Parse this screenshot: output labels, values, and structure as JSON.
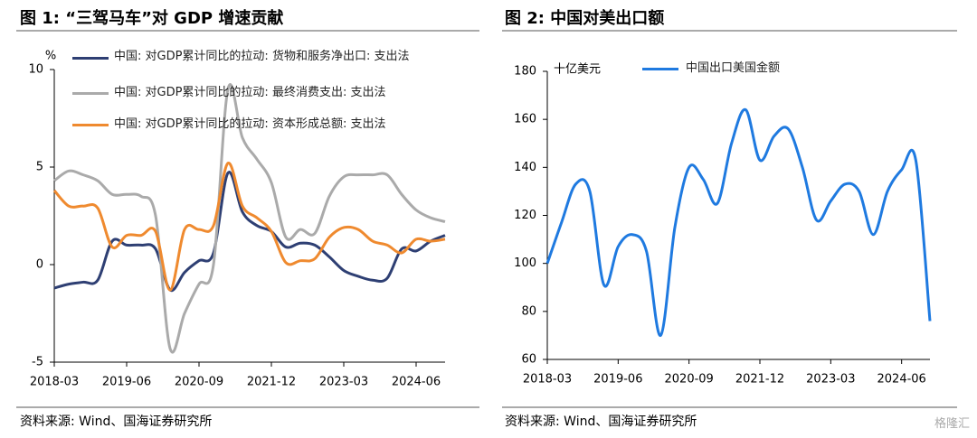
{
  "chart_data": [
    {
      "type": "line",
      "title": "图 1: “三驾马车”对 GDP 增速贡献",
      "ylabel": "%",
      "note": "资料来源: Wind、国海证券研究所",
      "x": [
        "2018-03",
        "2018-06",
        "2018-09",
        "2018-12",
        "2019-03",
        "2019-06",
        "2019-09",
        "2019-12",
        "2020-03",
        "2020-06",
        "2020-09",
        "2020-12",
        "2021-03",
        "2021-06",
        "2021-09",
        "2021-12",
        "2022-03",
        "2022-06",
        "2022-09",
        "2022-12",
        "2023-03",
        "2023-06",
        "2023-09",
        "2023-12",
        "2024-03",
        "2024-06",
        "2024-09",
        "2024-12"
      ],
      "xlim": [
        "2018-03",
        "2024-12"
      ],
      "xticks": [
        "2018-03",
        "2019-06",
        "2020-09",
        "2021-12",
        "2023-03",
        "2024-06"
      ],
      "ylim": [
        -5,
        10
      ],
      "yticks": [
        -5,
        0,
        5,
        10
      ],
      "series": [
        {
          "name": "中国: 对GDP累计同比的拉动: 货物和服务净出口: 支出法",
          "color": "#2e3f73",
          "values": [
            -1.2,
            -1.0,
            -0.9,
            -0.8,
            1.2,
            1.0,
            1.0,
            0.8,
            -1.3,
            -0.4,
            0.2,
            0.6,
            4.7,
            2.7,
            2.0,
            1.7,
            0.9,
            1.1,
            1.0,
            0.4,
            -0.3,
            -0.6,
            -0.8,
            -0.7,
            0.8,
            0.7,
            1.2,
            1.5
          ]
        },
        {
          "name": "中国: 对GDP累计同比的拉动: 最终消费支出: 支出法",
          "color": "#aaaaaa",
          "values": [
            4.3,
            4.8,
            4.6,
            4.3,
            3.6,
            3.6,
            3.5,
            2.5,
            -4.3,
            -2.5,
            -1.0,
            0.0,
            9.0,
            6.5,
            5.4,
            4.2,
            1.4,
            1.8,
            1.6,
            3.5,
            4.5,
            4.6,
            4.6,
            4.6,
            3.6,
            2.8,
            2.4,
            2.2
          ]
        },
        {
          "name": "中国: 对GDP累计同比的拉动: 资本形成总额: 支出法",
          "color": "#ef8a2f",
          "values": [
            3.8,
            3.0,
            3.0,
            2.9,
            0.9,
            1.5,
            1.5,
            1.7,
            -1.3,
            1.8,
            1.8,
            2.0,
            5.2,
            3.0,
            2.4,
            1.7,
            0.1,
            0.2,
            0.3,
            1.4,
            1.9,
            1.8,
            1.2,
            1.0,
            0.6,
            1.3,
            1.2,
            1.3
          ]
        }
      ]
    },
    {
      "type": "line",
      "title": "图 2: 中国对美出口额",
      "ylabel": "十亿美元",
      "note": "资料来源: Wind、国海证券研究所",
      "x": [
        "2018-03",
        "2018-06",
        "2018-09",
        "2018-12",
        "2019-03",
        "2019-06",
        "2019-09",
        "2019-12",
        "2020-03",
        "2020-06",
        "2020-09",
        "2020-12",
        "2021-03",
        "2021-06",
        "2021-09",
        "2021-12",
        "2022-03",
        "2022-06",
        "2022-09",
        "2022-12",
        "2023-03",
        "2023-06",
        "2023-09",
        "2023-12",
        "2024-03",
        "2024-06",
        "2024-09",
        "2024-12"
      ],
      "xlim": [
        "2018-03",
        "2024-12"
      ],
      "xticks": [
        "2018-03",
        "2019-06",
        "2020-09",
        "2021-12",
        "2023-03",
        "2024-06"
      ],
      "ylim": [
        60,
        180
      ],
      "yticks": [
        60,
        80,
        100,
        120,
        140,
        160,
        180
      ],
      "series": [
        {
          "name": "中国出口美国金额",
          "color": "#1f7ae0",
          "values": [
            100,
            117,
            133,
            130,
            91,
            107,
            112,
            105,
            70,
            115,
            140,
            135,
            125,
            150,
            164,
            143,
            153,
            156,
            140,
            118,
            126,
            133,
            130,
            112,
            130,
            139,
            143,
            76
          ]
        }
      ]
    }
  ],
  "watermark": "格隆汇"
}
